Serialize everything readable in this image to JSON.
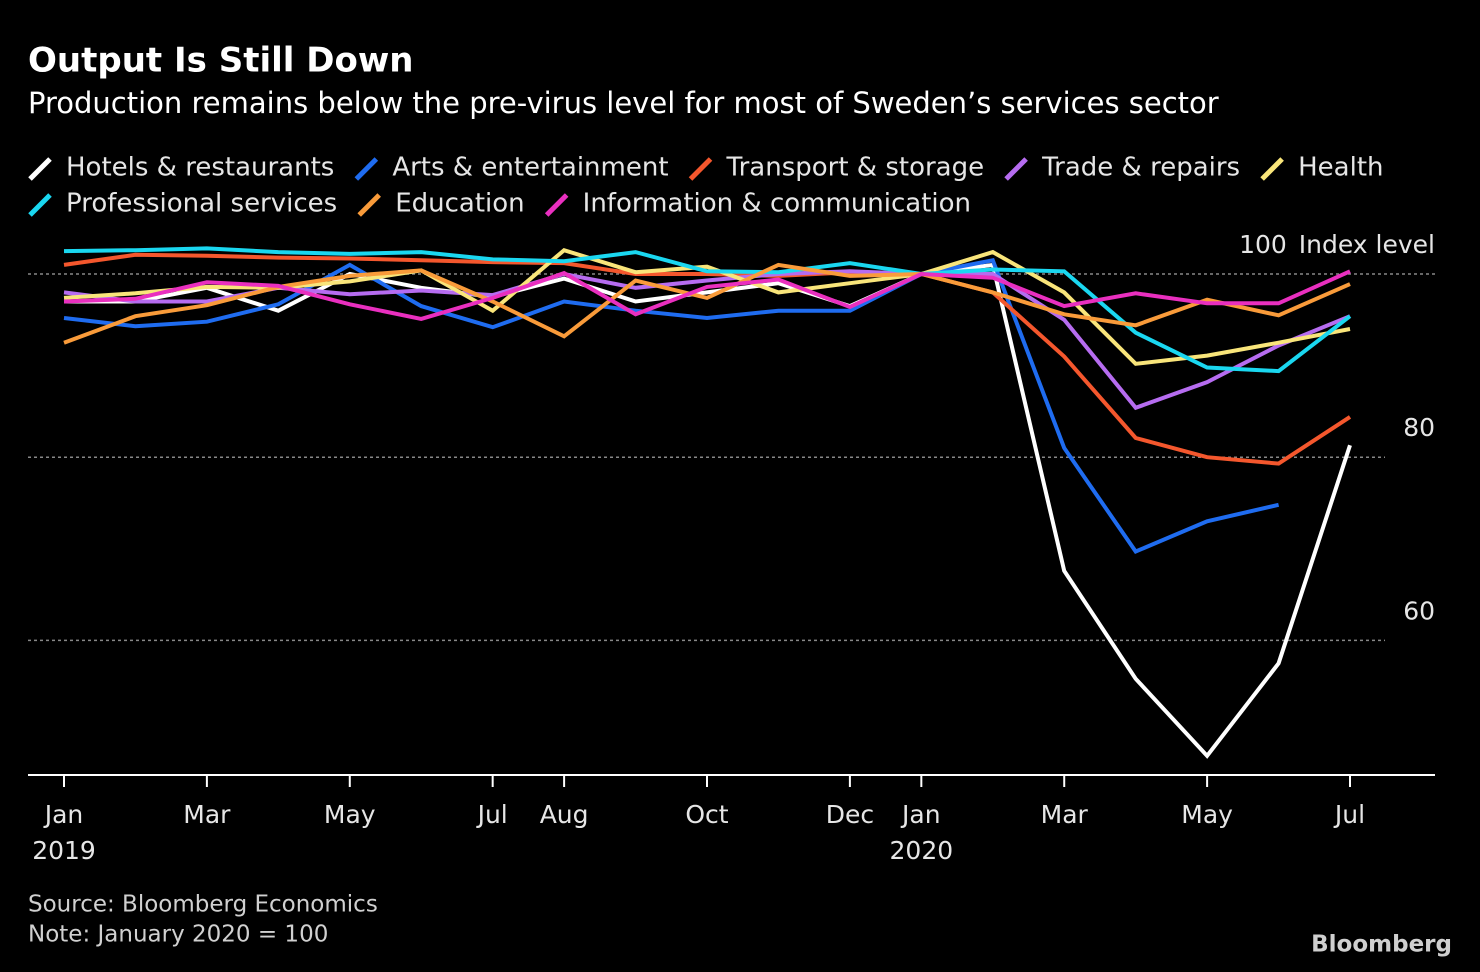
{
  "chart_data": {
    "type": "line",
    "title": "Output Is Still Down",
    "subtitle": "Production remains below the pre-virus level for most of Sweden’s services sector",
    "y_label": "Index level",
    "categories": [
      "Jan 2019",
      null,
      "Mar",
      null,
      "May",
      null,
      "Jul",
      "Aug",
      null,
      "Oct",
      null,
      "Dec",
      "Jan 2020",
      null,
      "Mar",
      null,
      "May",
      null,
      "Jul"
    ],
    "ylim": [
      45.3,
      105
    ],
    "yticks": [
      60,
      80,
      100
    ],
    "grid": true,
    "series": [
      {
        "name": "Hotels & restaurants",
        "color": "#ffffff",
        "values": [
          97,
          97,
          98.5,
          96,
          100,
          98.5,
          97.5,
          99.5,
          97,
          98,
          99,
          96.5,
          100,
          101,
          67.6,
          55.8,
          47.4,
          57.5,
          81.3
        ]
      },
      {
        "name": "Arts & entertainment",
        "color": "#1f6cf0",
        "values": [
          95.2,
          94.3,
          94.8,
          96.7,
          101,
          96.5,
          94.2,
          97,
          96,
          95.2,
          96,
          96,
          100,
          101.5,
          81,
          69.7,
          73,
          74.8,
          null
        ]
      },
      {
        "name": "Transport & storage",
        "color": "#f4572d",
        "values": [
          101,
          102.1,
          102,
          101.8,
          101.7,
          101.5,
          101.3,
          101.2,
          100,
          100,
          99.8,
          100.2,
          100,
          98,
          91,
          82.1,
          80,
          79.3,
          84.4
        ]
      },
      {
        "name": "Trade & repairs",
        "color": "#b66cf0",
        "values": [
          98,
          97,
          97,
          98.5,
          97.8,
          98.2,
          97.7,
          100,
          98.5,
          99.3,
          100,
          100.3,
          100,
          100,
          95,
          85.4,
          88.2,
          92.2,
          95.4
        ]
      },
      {
        "name": "Health",
        "color": "#f9e57a",
        "values": [
          97.4,
          97.9,
          98.6,
          98.5,
          99.2,
          100.4,
          96,
          102.6,
          100.2,
          100.8,
          98,
          99,
          100,
          102.4,
          98,
          90.2,
          91.1,
          92.5,
          94
        ]
      },
      {
        "name": "Professional services",
        "color": "#1ad7f0",
        "values": [
          102.5,
          102.6,
          102.8,
          102.4,
          102.2,
          102.4,
          101.6,
          101.4,
          102.4,
          100.3,
          100.2,
          101.2,
          100,
          100.5,
          100.3,
          93.6,
          89.8,
          89.4,
          95.4
        ]
      },
      {
        "name": "Education",
        "color": "#f99b3a",
        "values": [
          92.5,
          95.4,
          96.6,
          98.6,
          99.8,
          100.4,
          97,
          93.2,
          99.3,
          97.4,
          101,
          99.8,
          100,
          98,
          95.6,
          94.4,
          97.2,
          95.5,
          98.9
        ]
      },
      {
        "name": "Information & communication",
        "color": "#e92fbf",
        "values": [
          97,
          97.3,
          99.1,
          98.7,
          96.7,
          95.1,
          97.4,
          100.1,
          95.6,
          98.6,
          99.4,
          96.4,
          100,
          99.6,
          96.5,
          97.9,
          96.8,
          96.8,
          100.3
        ]
      }
    ],
    "source": "Source: Bloomberg Economics",
    "note": "Note: January 2020 = 100",
    "logo": "Bloomberg"
  }
}
